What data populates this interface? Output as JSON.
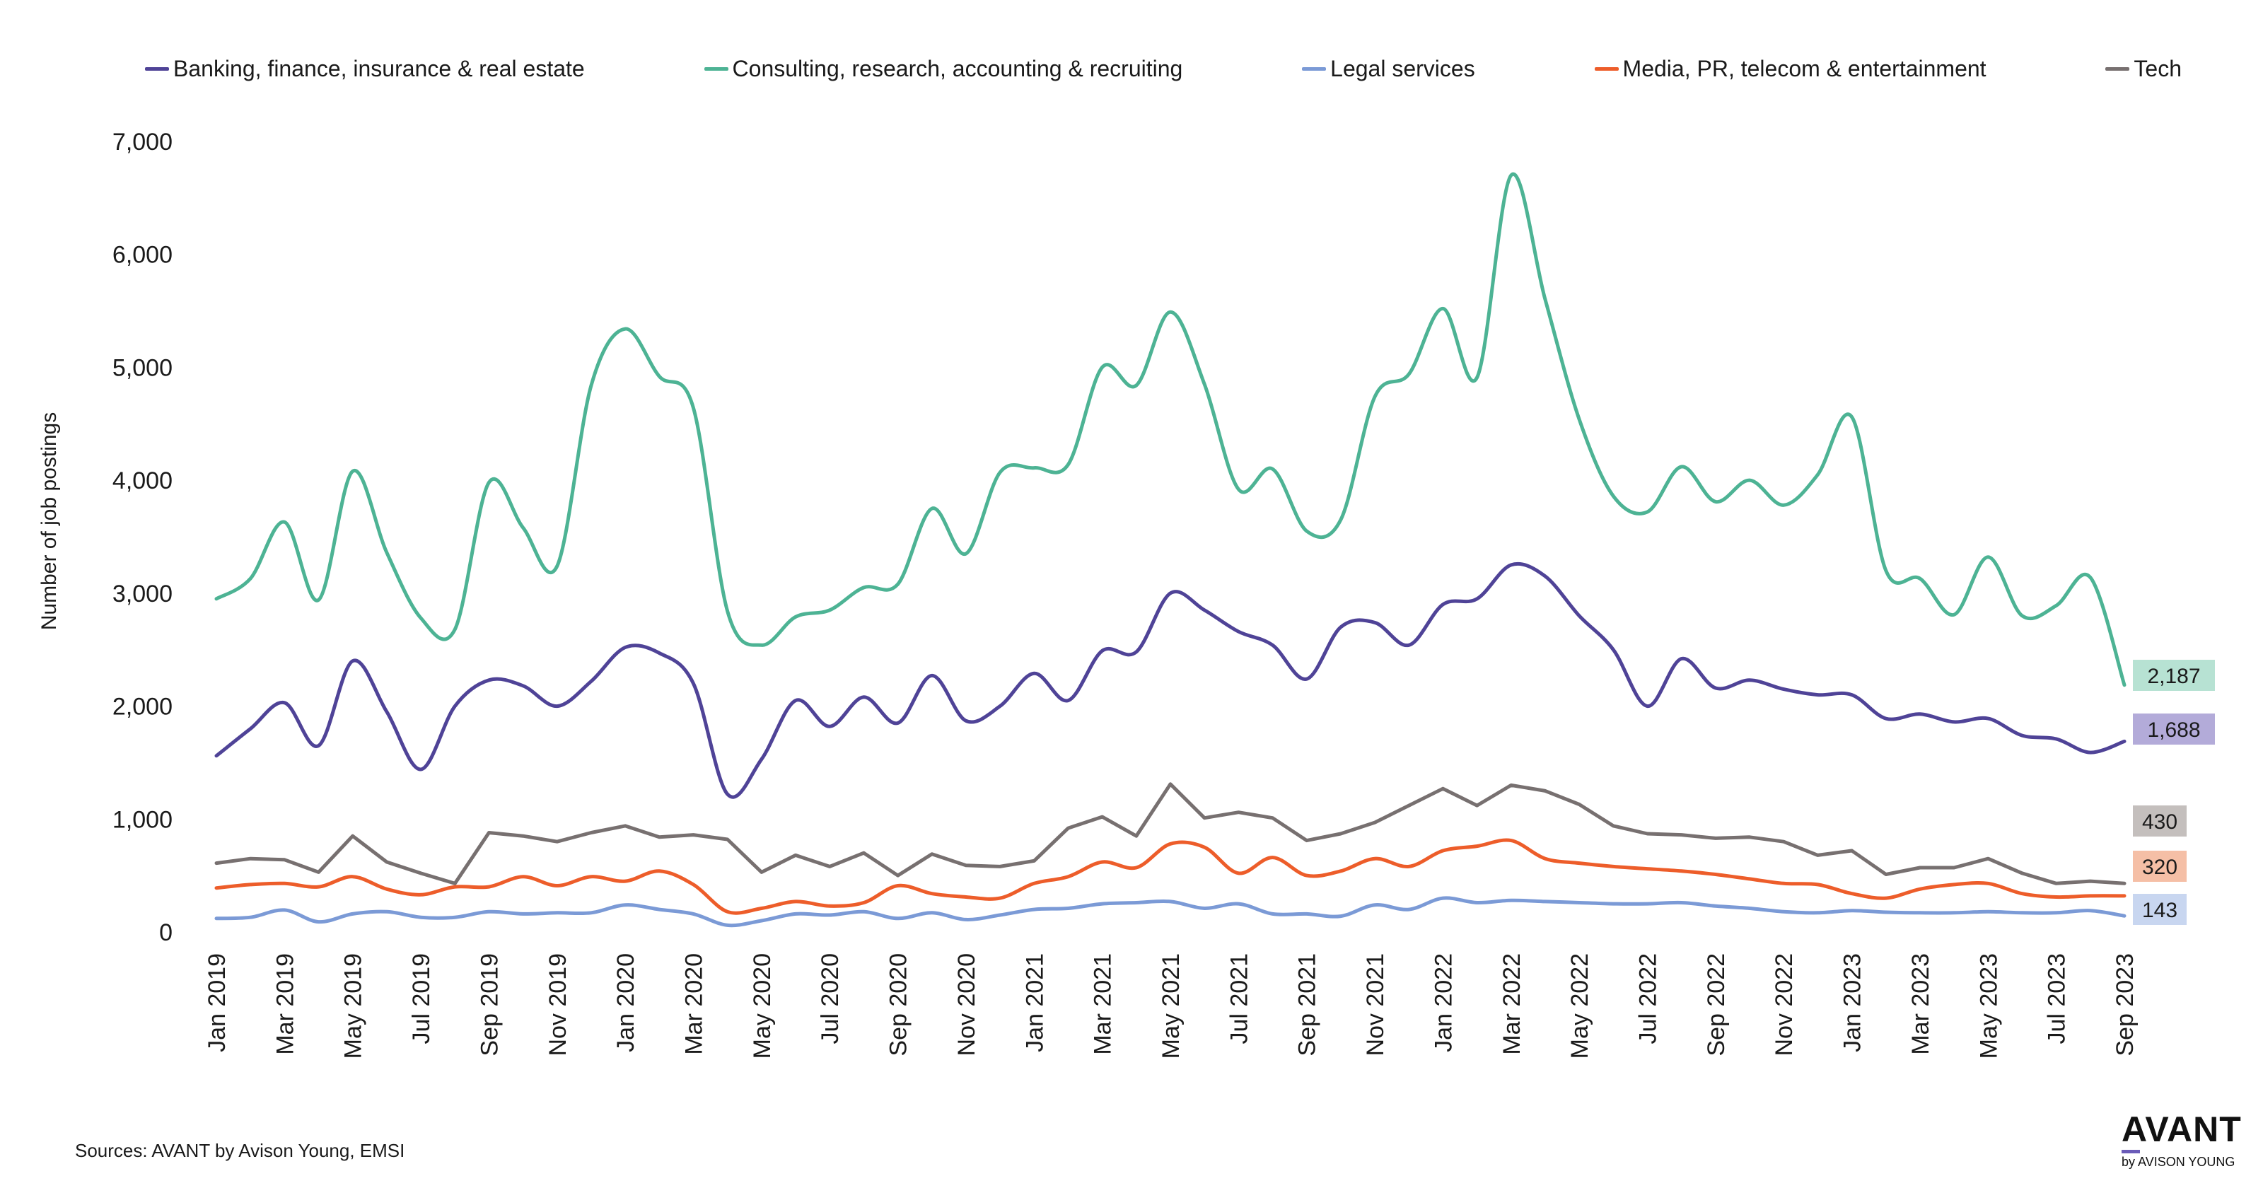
{
  "sources": "Sources: AVANT by Avison Young, EMSI",
  "logo": {
    "main": "AVANT",
    "sub": "by AVISON YOUNG"
  },
  "chart_data": {
    "type": "line",
    "title": "",
    "xlabel": "",
    "ylabel": "Number of job postings",
    "ylim": [
      0,
      7000
    ],
    "yticks": [
      "0",
      "1,000",
      "2,000",
      "3,000",
      "4,000",
      "5,000",
      "6,000",
      "7,000"
    ],
    "legend_position": "top",
    "grid": false,
    "x": [
      "Jan 2019",
      "Feb 2019",
      "Mar 2019",
      "Apr 2019",
      "May 2019",
      "Jun 2019",
      "Jul 2019",
      "Aug 2019",
      "Sep 2019",
      "Oct 2019",
      "Nov 2019",
      "Dec 2019",
      "Jan 2020",
      "Feb 2020",
      "Mar 2020",
      "Apr 2020",
      "May 2020",
      "Jun 2020",
      "Jul 2020",
      "Aug 2020",
      "Sep 2020",
      "Oct 2020",
      "Nov 2020",
      "Dec 2020",
      "Jan 2021",
      "Feb 2021",
      "Mar 2021",
      "Apr 2021",
      "May 2021",
      "Jun 2021",
      "Jul 2021",
      "Aug 2021",
      "Sep 2021",
      "Oct 2021",
      "Nov 2021",
      "Dec 2021",
      "Jan 2022",
      "Feb 2022",
      "Mar 2022",
      "Apr 2022",
      "May 2022",
      "Jun 2022",
      "Jul 2022",
      "Aug 2022",
      "Sep 2022",
      "Oct 2022",
      "Nov 2022",
      "Dec 2022",
      "Jan 2023",
      "Feb 2023",
      "Mar 2023",
      "Apr 2023",
      "May 2023",
      "Jun 2023",
      "Jul 2023",
      "Aug 2023",
      "Sep 2023"
    ],
    "xtick_labels": [
      "Jan 2019",
      "Mar 2019",
      "May 2019",
      "Jul 2019",
      "Sep 2019",
      "Nov 2019",
      "Jan 2020",
      "Mar 2020",
      "May 2020",
      "Jul 2020",
      "Sep 2020",
      "Nov 2020",
      "Jan 2021",
      "Mar 2021",
      "May 2021",
      "Jul 2021",
      "Sep 2021",
      "Nov 2021",
      "Jan 2022",
      "Mar 2022",
      "May 2022",
      "Jul 2022",
      "Sep 2022",
      "Nov 2022",
      "Jan 2023",
      "Mar 2023",
      "May 2023",
      "Jul 2023",
      "Sep 2023"
    ],
    "series": [
      {
        "name": "Banking, finance, insurance & real estate",
        "color": "#4f4397",
        "smooth": true,
        "end_label": "1,688",
        "label_bg": "#b3abd9",
        "values": [
          1560,
          1800,
          2030,
          1650,
          2400,
          1950,
          1440,
          2000,
          2230,
          2180,
          2000,
          2220,
          2520,
          2470,
          2200,
          1220,
          1530,
          2050,
          1820,
          2080,
          1850,
          2270,
          1870,
          2000,
          2290,
          2050,
          2490,
          2480,
          3000,
          2850,
          2660,
          2540,
          2240,
          2700,
          2740,
          2540,
          2900,
          2950,
          3250,
          3150,
          2800,
          2500,
          2000,
          2420,
          2160,
          2230,
          2150,
          2100,
          2100,
          1890,
          1930,
          1860,
          1890,
          1740,
          1710,
          1590,
          1688
        ]
      },
      {
        "name": "Consulting, research, accounting & recruiting",
        "color": "#4db394",
        "smooth": true,
        "end_label": "2,187",
        "label_bg": "#b7e2d3",
        "values": [
          2950,
          3130,
          3630,
          2940,
          4080,
          3360,
          2780,
          2680,
          3980,
          3580,
          3240,
          4840,
          5340,
          4920,
          4640,
          2840,
          2540,
          2790,
          2850,
          3050,
          3080,
          3750,
          3350,
          4070,
          4110,
          4140,
          5000,
          4840,
          5490,
          4850,
          3920,
          4100,
          3550,
          3650,
          4740,
          4940,
          5520,
          4910,
          6700,
          5600,
          4540,
          3860,
          3720,
          4120,
          3810,
          4000,
          3780,
          4050,
          4560,
          3200,
          3130,
          2810,
          3320,
          2800,
          2890,
          3140,
          2187
        ]
      },
      {
        "name": "Legal services",
        "color": "#7b9ad6",
        "smooth": true,
        "end_label": "143",
        "label_bg": "#c8d6f0",
        "values": [
          120,
          130,
          195,
          90,
          160,
          180,
          130,
          130,
          180,
          160,
          170,
          170,
          240,
          200,
          160,
          60,
          100,
          160,
          150,
          180,
          120,
          170,
          110,
          150,
          200,
          210,
          250,
          260,
          270,
          210,
          250,
          160,
          160,
          140,
          240,
          200,
          300,
          260,
          280,
          270,
          260,
          250,
          250,
          260,
          230,
          210,
          180,
          170,
          190,
          175,
          170,
          170,
          180,
          170,
          170,
          190,
          143
        ]
      },
      {
        "name": "Media, PR, telecom & entertainment",
        "color": "#ed5d2a",
        "smooth": true,
        "end_label": "320",
        "label_bg": "#f5bfa6",
        "values": [
          390,
          420,
          430,
          400,
          490,
          380,
          330,
          400,
          400,
          490,
          410,
          490,
          450,
          540,
          420,
          180,
          210,
          270,
          230,
          260,
          410,
          340,
          310,
          300,
          430,
          490,
          620,
          570,
          780,
          750,
          520,
          660,
          500,
          540,
          650,
          580,
          720,
          760,
          810,
          650,
          610,
          580,
          560,
          540,
          510,
          470,
          430,
          420,
          340,
          300,
          380,
          420,
          430,
          340,
          310,
          320,
          320
        ]
      },
      {
        "name": "Tech",
        "color": "#777070",
        "smooth": false,
        "end_label": "430",
        "label_bg": "#c4bfbd",
        "values": [
          610,
          650,
          640,
          530,
          850,
          620,
          520,
          430,
          880,
          850,
          800,
          880,
          940,
          840,
          860,
          820,
          530,
          680,
          580,
          700,
          500,
          690,
          590,
          580,
          630,
          920,
          1020,
          850,
          1310,
          1010,
          1060,
          1010,
          810,
          870,
          970,
          1120,
          1270,
          1120,
          1300,
          1250,
          1130,
          940,
          870,
          860,
          830,
          840,
          800,
          680,
          720,
          510,
          570,
          570,
          650,
          520,
          430,
          450,
          430
        ]
      }
    ]
  }
}
